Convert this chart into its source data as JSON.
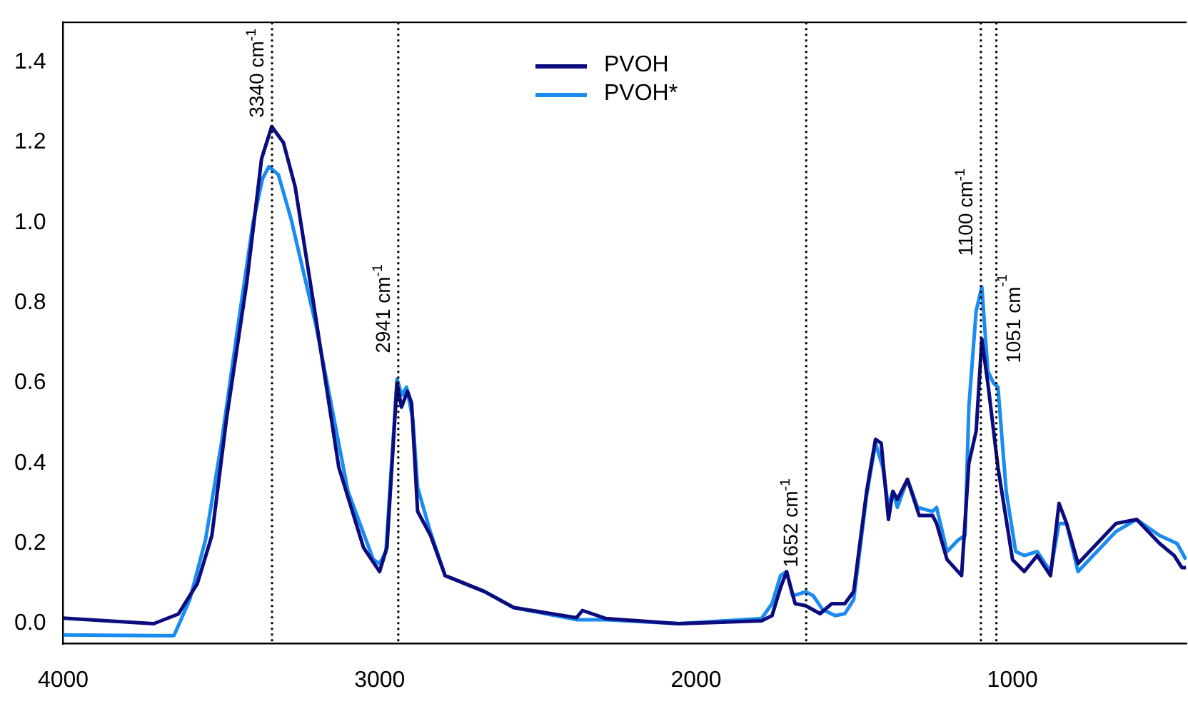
{
  "chart_data": {
    "type": "line",
    "xlim": [
      4000,
      450
    ],
    "xticks": [
      4000,
      3000,
      2000,
      1000
    ],
    "ylim": [
      -0.05,
      1.5
    ],
    "yticks": [
      {
        "value": 0,
        "label": "0.0"
      },
      0.2,
      0.4,
      0.6,
      0.8,
      {
        "value": 1,
        "label": "1.0"
      },
      1.2,
      1.4
    ],
    "grid": false,
    "legend": "top",
    "marker": "none",
    "line_style": "solid",
    "series": [
      {
        "name": "PVOH",
        "color": "#0c0c7e",
        "x": [
          4000,
          3714,
          3636,
          3576,
          3530,
          3484,
          3420,
          3373,
          3341,
          3304,
          3267,
          3207,
          3129,
          3051,
          3000,
          2977,
          2945,
          2931,
          2912,
          2899,
          2880,
          2839,
          2793,
          2668,
          2576,
          2378,
          2359,
          2286,
          2055,
          1793,
          1760,
          1733,
          1714,
          1687,
          1654,
          1608,
          1571,
          1530,
          1502,
          1461,
          1433,
          1415,
          1392,
          1378,
          1364,
          1332,
          1295,
          1253,
          1240,
          1207,
          1161,
          1138,
          1115,
          1097,
          1078,
          1046,
          1000,
          963,
          922,
          880,
          853,
          829,
          793,
          673,
          608,
          535,
          489,
          465,
          452
        ],
        "values": [
          0.014,
          0.0,
          0.024,
          0.1,
          0.22,
          0.51,
          0.85,
          1.16,
          1.24,
          1.2,
          1.09,
          0.79,
          0.39,
          0.19,
          0.13,
          0.19,
          0.6,
          0.54,
          0.58,
          0.55,
          0.28,
          0.22,
          0.12,
          0.08,
          0.04,
          0.015,
          0.033,
          0.013,
          0.0,
          0.007,
          0.02,
          0.09,
          0.13,
          0.05,
          0.045,
          0.025,
          0.05,
          0.05,
          0.08,
          0.33,
          0.46,
          0.45,
          0.26,
          0.33,
          0.31,
          0.36,
          0.27,
          0.27,
          0.25,
          0.16,
          0.12,
          0.4,
          0.48,
          0.71,
          0.6,
          0.39,
          0.16,
          0.13,
          0.17,
          0.12,
          0.3,
          0.25,
          0.15,
          0.25,
          0.26,
          0.2,
          0.17,
          0.14,
          0.14
        ]
      },
      {
        "name": "PVOH*",
        "color": "#1a8cf0",
        "x": [
          4000,
          3714,
          3650,
          3600,
          3550,
          3500,
          3450,
          3400,
          3370,
          3350,
          3320,
          3280,
          3200,
          3100,
          3020,
          3000,
          2980,
          2945,
          2930,
          2915,
          2895,
          2880,
          2840,
          2793,
          2668,
          2576,
          2378,
          2286,
          2055,
          1793,
          1760,
          1733,
          1714,
          1695,
          1670,
          1654,
          1630,
          1600,
          1560,
          1530,
          1502,
          1461,
          1433,
          1410,
          1392,
          1378,
          1364,
          1332,
          1300,
          1253,
          1240,
          1207,
          1170,
          1150,
          1138,
          1115,
          1097,
          1078,
          1060,
          1046,
          1020,
          990,
          963,
          922,
          880,
          853,
          829,
          793,
          673,
          608,
          535,
          480,
          452
        ],
        "values": [
          -0.028,
          -0.03,
          -0.03,
          0.06,
          0.21,
          0.45,
          0.73,
          1.0,
          1.11,
          1.14,
          1.12,
          1.01,
          0.74,
          0.33,
          0.16,
          0.15,
          0.18,
          0.61,
          0.57,
          0.59,
          0.51,
          0.34,
          0.23,
          0.12,
          0.08,
          0.04,
          0.01,
          0.01,
          0.0,
          0.013,
          0.05,
          0.12,
          0.13,
          0.07,
          0.075,
          0.08,
          0.07,
          0.035,
          0.02,
          0.025,
          0.06,
          0.32,
          0.45,
          0.39,
          0.29,
          0.33,
          0.29,
          0.36,
          0.29,
          0.28,
          0.29,
          0.18,
          0.21,
          0.22,
          0.54,
          0.78,
          0.84,
          0.63,
          0.6,
          0.59,
          0.33,
          0.18,
          0.17,
          0.18,
          0.13,
          0.25,
          0.25,
          0.13,
          0.23,
          0.26,
          0.22,
          0.2,
          0.16
        ]
      }
    ],
    "ref_lines": [
      {
        "axis": "x",
        "value": 3340,
        "label": "3340 cm$^{-1}$",
        "color": "#000000",
        "line_style": "dotted"
      },
      {
        "axis": "x",
        "value": 2941,
        "label": "2941 cm$^{-1}$",
        "color": "#000000",
        "line_style": "dotted"
      },
      {
        "axis": "x",
        "value": 1652,
        "label": "1652 cm$^{-1}$",
        "color": "#000000",
        "line_style": "dotted"
      },
      {
        "axis": "x",
        "value": 1100,
        "label": "1100 cm$^{-1}$",
        "color": "#000000",
        "line_style": "dotted"
      },
      {
        "axis": "x",
        "value": 1051,
        "label": "1051 cm$^{-1}$",
        "color": "#000000",
        "line_style": "dotted"
      }
    ]
  }
}
